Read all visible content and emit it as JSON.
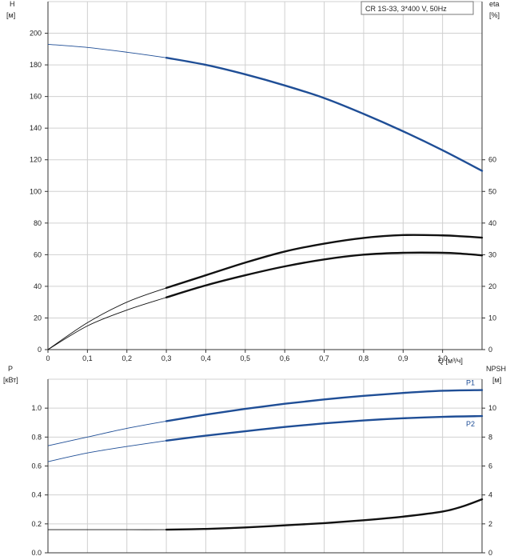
{
  "chart_data": [
    {
      "type": "line",
      "title_box": "CR 1S-33, 3*400 V, 50Hz",
      "xlabel": "Q [м³/ч]",
      "x_ticks": [
        "0",
        "0,1",
        "0,2",
        "0,3",
        "0,4",
        "0,5",
        "0,6",
        "0,7",
        "0,8",
        "0,9",
        "1,0"
      ],
      "xlim": [
        0,
        1.1
      ],
      "ylabel_left": [
        "H",
        "[м]"
      ],
      "y_left_ticks": [
        "0",
        "20",
        "40",
        "60",
        "80",
        "100",
        "120",
        "140",
        "160",
        "180",
        "200"
      ],
      "ylim_left": [
        0,
        220
      ],
      "ylabel_right": [
        "eta",
        "[%]"
      ],
      "y_right_ticks": [
        "0",
        "10",
        "20",
        "30",
        "40",
        "50",
        "60"
      ],
      "ylim_right": [
        0,
        110
      ],
      "grid": true,
      "series": [
        {
          "axis": "left",
          "color": "#1f4e96",
          "x": [
            0,
            0.1,
            0.2,
            0.3,
            0.4,
            0.5,
            0.6,
            0.7,
            0.8,
            0.9,
            1.0,
            1.1
          ],
          "values": [
            193,
            191,
            188,
            184.5,
            180,
            174,
            167,
            159,
            149,
            138,
            126,
            113
          ],
          "bold_from": 0.3
        },
        {
          "axis": "right",
          "color": "#111111",
          "x": [
            0,
            0.1,
            0.2,
            0.3,
            0.4,
            0.5,
            0.6,
            0.7,
            0.8,
            0.9,
            1.0,
            1.05,
            1.1
          ],
          "values": [
            0,
            8.5,
            15,
            19.5,
            23.5,
            27.5,
            31,
            33.5,
            35.3,
            36.2,
            36.1,
            35.8,
            35.4
          ],
          "bold_from": 0.3
        },
        {
          "axis": "right",
          "color": "#111111",
          "x": [
            0,
            0.1,
            0.2,
            0.3,
            0.4,
            0.5,
            0.6,
            0.7,
            0.8,
            0.9,
            1.0,
            1.05,
            1.1
          ],
          "values": [
            0,
            7.5,
            12.5,
            16.5,
            20.3,
            23.5,
            26.3,
            28.5,
            30,
            30.6,
            30.6,
            30.3,
            29.8
          ],
          "bold_from": 0.3
        }
      ]
    },
    {
      "type": "line",
      "xlim": [
        0,
        1.1
      ],
      "ylabel_left": [
        "P",
        "[кВт]"
      ],
      "y_left_ticks": [
        "0.0",
        "0.2",
        "0.4",
        "0.6",
        "0.8",
        "1.0"
      ],
      "ylim_left": [
        0,
        1.2
      ],
      "ylabel_right": [
        "NPSH",
        "[м]"
      ],
      "y_right_ticks": [
        "0",
        "2",
        "4",
        "6",
        "8",
        "10"
      ],
      "ylim_right": [
        0,
        12
      ],
      "grid": true,
      "series": [
        {
          "name": "P1",
          "axis": "left",
          "color": "#1f4e96",
          "x": [
            0,
            0.1,
            0.2,
            0.3,
            0.4,
            0.5,
            0.6,
            0.7,
            0.8,
            0.9,
            1.0,
            1.1
          ],
          "values": [
            0.74,
            0.8,
            0.86,
            0.91,
            0.955,
            0.995,
            1.03,
            1.06,
            1.085,
            1.105,
            1.12,
            1.125
          ],
          "bold_from": 0.3
        },
        {
          "name": "P2",
          "axis": "left",
          "color": "#1f4e96",
          "x": [
            0,
            0.1,
            0.2,
            0.3,
            0.4,
            0.5,
            0.6,
            0.7,
            0.8,
            0.9,
            1.0,
            1.1
          ],
          "values": [
            0.63,
            0.69,
            0.735,
            0.775,
            0.81,
            0.84,
            0.87,
            0.895,
            0.915,
            0.93,
            0.94,
            0.945
          ],
          "bold_from": 0.3
        },
        {
          "axis": "right",
          "color": "#111111",
          "x": [
            0,
            0.1,
            0.2,
            0.3,
            0.4,
            0.5,
            0.6,
            0.7,
            0.8,
            0.9,
            1.0,
            1.05,
            1.1
          ],
          "values": [
            1.6,
            1.6,
            1.6,
            1.6,
            1.65,
            1.75,
            1.9,
            2.05,
            2.25,
            2.5,
            2.85,
            3.2,
            3.7
          ],
          "bold_from": 0.3
        }
      ]
    }
  ]
}
